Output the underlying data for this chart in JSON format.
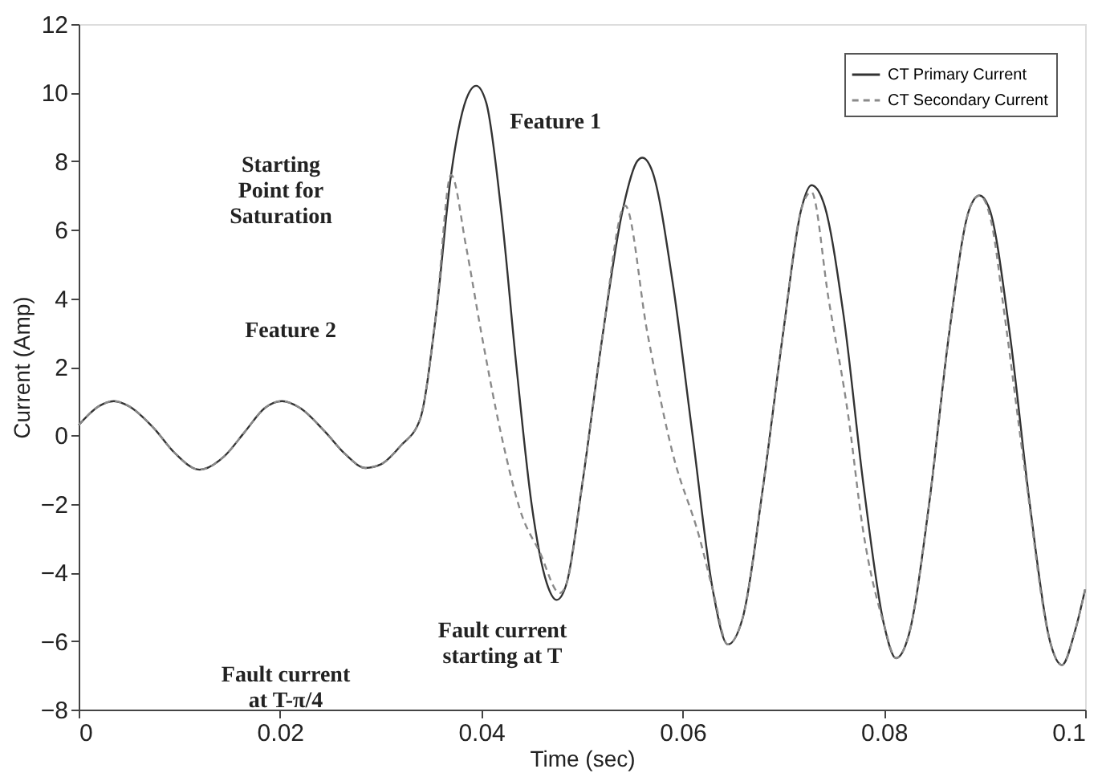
{
  "chart_data": {
    "type": "line",
    "xlabel": "Time (sec)",
    "ylabel": "Current (Amp)",
    "xlim": [
      0,
      0.1
    ],
    "xticks": [
      0,
      0.02,
      0.04,
      0.06,
      0.08,
      0.1
    ],
    "ylim": [
      -8,
      12
    ],
    "yticks": [
      -8,
      -6,
      -4,
      -2,
      0,
      2,
      4,
      6,
      8,
      10,
      12
    ],
    "grid": false,
    "legend": "top right",
    "marker": "none",
    "series": [
      {
        "name": "CT Primary Current",
        "color": "#333333",
        "line_style": "solid",
        "x": [
          0,
          0.002,
          0.0035,
          0.005,
          0.0075,
          0.0095,
          0.012,
          0.0145,
          0.0165,
          0.0185,
          0.0202,
          0.022,
          0.0245,
          0.0265,
          0.0285,
          0.03,
          0.032,
          0.0339,
          0.0355,
          0.037,
          0.0385,
          0.0395,
          0.0405,
          0.042,
          0.0435,
          0.045,
          0.0465,
          0.0475,
          0.0485,
          0.05,
          0.052,
          0.054,
          0.0555,
          0.056,
          0.057,
          0.059,
          0.061,
          0.063,
          0.0645,
          0.066,
          0.068,
          0.07,
          0.0718,
          0.0728,
          0.074,
          0.076,
          0.078,
          0.08,
          0.0812,
          0.0825,
          0.0845,
          0.0865,
          0.0885,
          0.0895,
          0.0905,
          0.0925,
          0.0945,
          0.0965,
          0.0977,
          0.099,
          0.1
        ],
        "values": [
          0.3,
          0.85,
          1.0,
          0.85,
          0.2,
          -0.5,
          -1.0,
          -0.6,
          0.1,
          0.8,
          1.0,
          0.8,
          0.1,
          -0.55,
          -0.95,
          -0.85,
          -0.3,
          0.45,
          3.5,
          7.6,
          9.8,
          10.2,
          9.7,
          6.5,
          2.0,
          -2.0,
          -4.3,
          -4.8,
          -4.3,
          -1.5,
          2.8,
          6.5,
          8.0,
          8.1,
          7.7,
          4.5,
          0.0,
          -4.5,
          -6.1,
          -5.3,
          -1.5,
          3.0,
          6.6,
          7.3,
          6.8,
          3.5,
          -1.5,
          -5.5,
          -6.5,
          -5.8,
          -2.0,
          3.0,
          6.6,
          7.0,
          6.6,
          3.0,
          -2.0,
          -6.0,
          -6.7,
          -5.7,
          -4.5
        ]
      },
      {
        "name": "CT Secondary Current",
        "color": "#8a8a8a",
        "line_style": "dashed",
        "x": [
          0,
          0.002,
          0.0035,
          0.005,
          0.0075,
          0.0095,
          0.012,
          0.0145,
          0.0165,
          0.0185,
          0.0202,
          0.022,
          0.0245,
          0.0265,
          0.0285,
          0.03,
          0.032,
          0.0339,
          0.0355,
          0.037,
          0.0385,
          0.04,
          0.042,
          0.044,
          0.0458,
          0.0478,
          0.0485,
          0.05,
          0.052,
          0.0543,
          0.0565,
          0.059,
          0.0617,
          0.063,
          0.0645,
          0.066,
          0.068,
          0.07,
          0.0718,
          0.0728,
          0.0745,
          0.0765,
          0.0779,
          0.08,
          0.0812,
          0.0825,
          0.0845,
          0.0865,
          0.0885,
          0.0895,
          0.0907,
          0.092,
          0.094,
          0.0965,
          0.0977,
          0.099,
          0.1
        ],
        "values": [
          0.3,
          0.85,
          1.0,
          0.85,
          0.2,
          -0.5,
          -1.0,
          -0.6,
          0.1,
          0.8,
          1.0,
          0.8,
          0.1,
          -0.55,
          -0.95,
          -0.85,
          -0.3,
          0.45,
          3.5,
          7.6,
          5.5,
          3.0,
          0.0,
          -2.3,
          -3.4,
          -4.6,
          -4.3,
          -1.5,
          2.8,
          6.7,
          3.0,
          -0.5,
          -3.0,
          -4.5,
          -6.1,
          -5.3,
          -1.5,
          3.0,
          6.6,
          7.1,
          4.0,
          0.5,
          -2.7,
          -5.5,
          -6.5,
          -5.8,
          -2.0,
          3.0,
          6.6,
          7.0,
          6.2,
          3.5,
          -1.0,
          -6.0,
          -6.7,
          -5.7,
          -4.5
        ]
      }
    ],
    "annotations": [
      "Starting\nPoint for\nSaturation",
      "Feature 1",
      "Feature 2",
      "Fault current\nstarting at T",
      "Fault current\nat T-π/4"
    ]
  }
}
